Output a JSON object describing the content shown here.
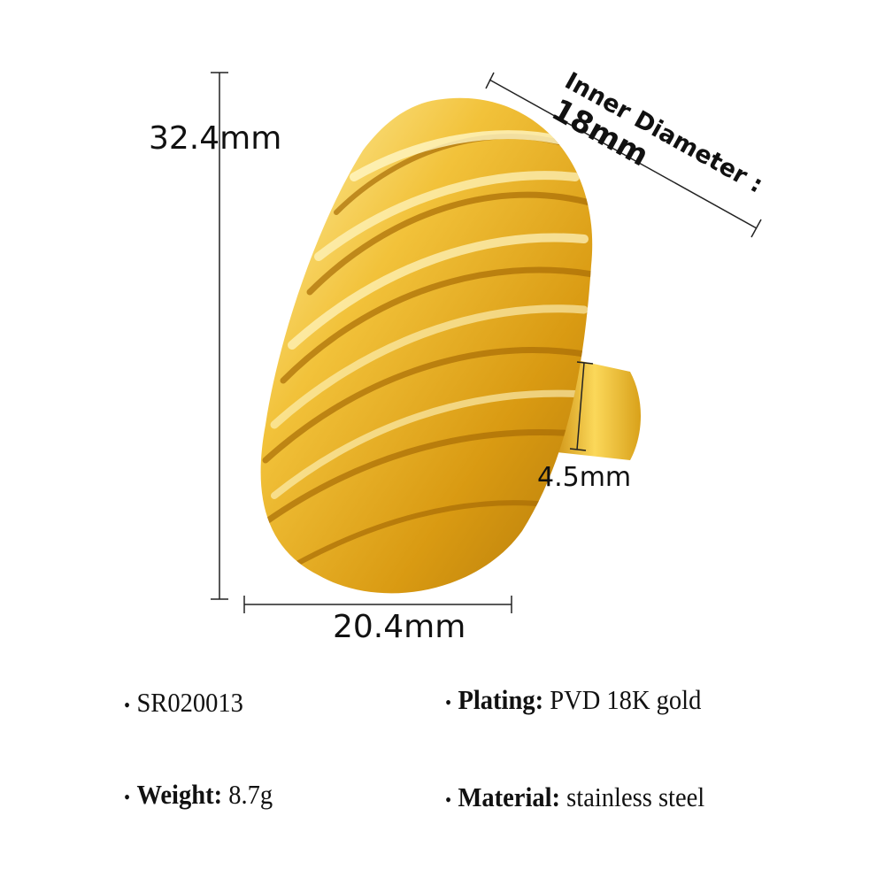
{
  "product": {
    "image_alt": "gold twisted ridge dome ring",
    "colors": {
      "gold_light": "#fde98a",
      "gold_mid": "#e9b423",
      "gold_dark": "#a56d07"
    }
  },
  "dimensions": {
    "height": "32.4mm",
    "width": "20.4mm",
    "band_width": "4.5mm",
    "inner_diameter_label": "Inner Diameter :",
    "inner_diameter_value": "18mm"
  },
  "specs": {
    "sku": "SR020013",
    "plating_label": "Plating:",
    "plating_value": "PVD 18K gold",
    "weight_label": "Weight:",
    "weight_value": "8.7g",
    "material_label": "Material:",
    "material_value": "stainless steel",
    "bullet": "•"
  }
}
